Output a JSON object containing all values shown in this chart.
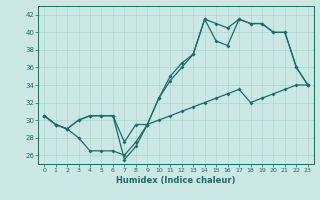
{
  "bg_color": "#cce8e5",
  "line_color": "#1a6b6b",
  "grid_color": "#afd4d0",
  "xlabel": "Humidex (Indice chaleur)",
  "ylim": [
    25,
    43
  ],
  "xlim": [
    -0.5,
    23.5
  ],
  "yticks": [
    26,
    28,
    30,
    32,
    34,
    36,
    38,
    40,
    42
  ],
  "xticks": [
    0,
    1,
    2,
    3,
    4,
    5,
    6,
    7,
    8,
    9,
    10,
    11,
    12,
    13,
    14,
    15,
    16,
    17,
    18,
    19,
    20,
    21,
    22,
    23
  ],
  "series1_x": [
    0,
    1,
    2,
    3,
    4,
    5,
    6,
    7,
    8,
    9,
    10,
    11,
    12,
    13,
    14,
    15,
    16,
    17,
    18,
    19,
    20,
    21,
    22,
    23
  ],
  "series1_y": [
    30.5,
    29.5,
    29.0,
    30.0,
    30.5,
    30.5,
    30.5,
    27.5,
    29.5,
    29.5,
    32.5,
    35.0,
    36.5,
    37.5,
    41.5,
    41.0,
    40.5,
    41.5,
    41.0,
    41.0,
    40.0,
    40.0,
    36.0,
    34.0
  ],
  "series2_x": [
    0,
    1,
    2,
    3,
    4,
    5,
    6,
    7,
    8,
    9,
    10,
    11,
    12,
    13,
    14,
    15,
    16,
    17,
    18,
    19,
    20,
    21,
    22,
    23
  ],
  "series2_y": [
    30.5,
    29.5,
    29.0,
    30.0,
    30.5,
    30.5,
    30.5,
    25.5,
    27.0,
    29.5,
    32.5,
    34.5,
    36.0,
    37.5,
    41.5,
    39.0,
    38.5,
    41.5,
    41.0,
    41.0,
    40.0,
    40.0,
    36.0,
    34.0
  ],
  "series3_x": [
    0,
    1,
    2,
    3,
    4,
    5,
    6,
    7,
    8,
    9,
    10,
    11,
    12,
    13,
    14,
    15,
    16,
    17,
    18,
    19,
    20,
    21,
    22,
    23
  ],
  "series3_y": [
    30.5,
    29.5,
    29.0,
    28.0,
    26.5,
    26.5,
    26.5,
    26.0,
    27.5,
    29.5,
    30.0,
    30.5,
    31.0,
    31.5,
    32.0,
    32.5,
    33.0,
    33.5,
    32.0,
    32.5,
    33.0,
    33.5,
    34.0,
    34.0
  ]
}
